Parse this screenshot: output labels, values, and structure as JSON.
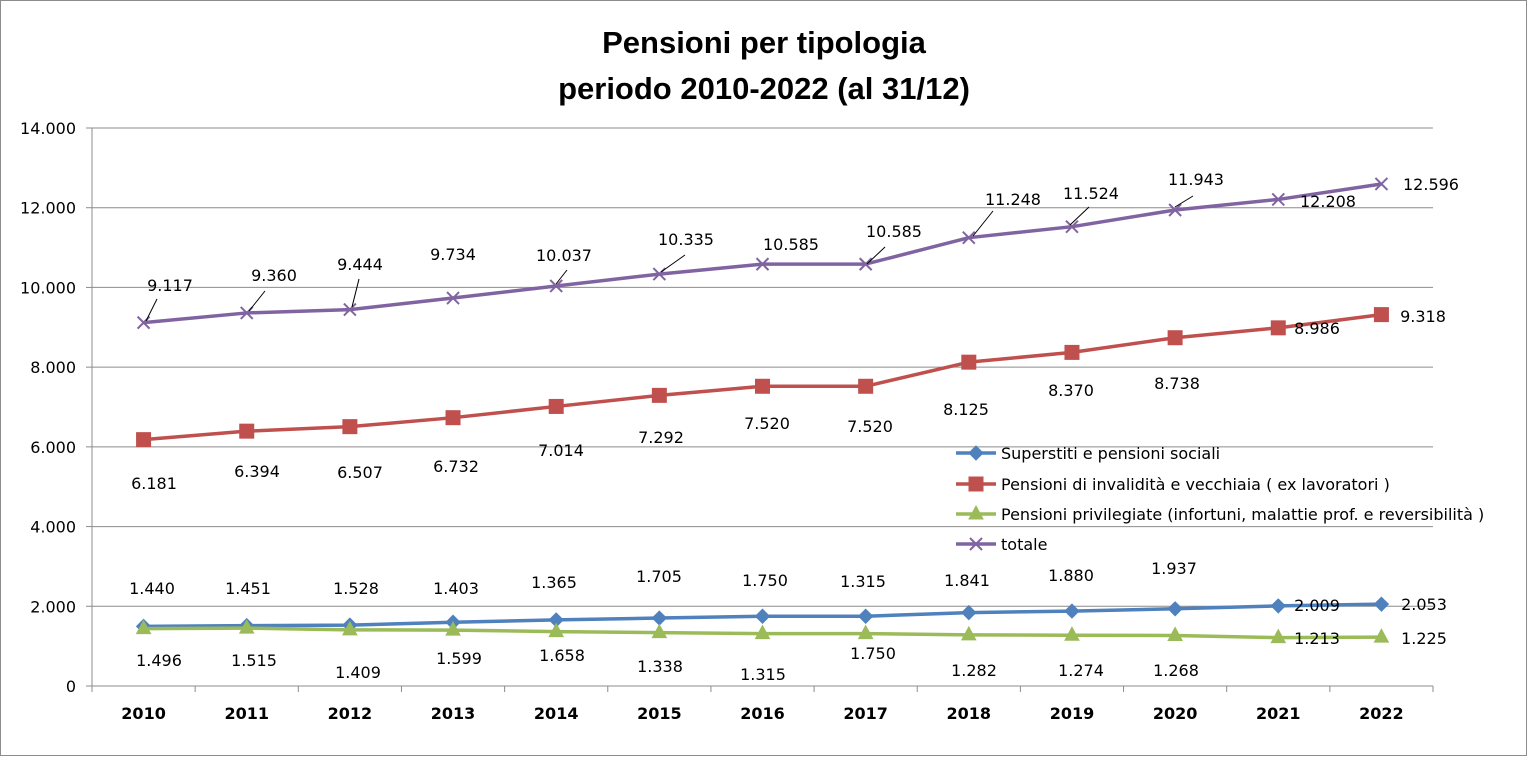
{
  "chart_data": {
    "type": "line",
    "title": [
      "Pensioni per tipologia",
      "periodo 2010-2022 (al 31/12)"
    ],
    "categories": [
      "2010",
      "2011",
      "2012",
      "2013",
      "2014",
      "2015",
      "2016",
      "2017",
      "2018",
      "2019",
      "2020",
      "2021",
      "2022"
    ],
    "ylim": [
      0,
      14000
    ],
    "yticks": [
      0,
      2000,
      4000,
      6000,
      8000,
      10000,
      12000,
      14000
    ],
    "ytick_labels": [
      "0",
      "2.000",
      "4.000",
      "6.000",
      "8.000",
      "10.000",
      "12.000",
      "14.000"
    ],
    "grid": true,
    "legend_position": "right",
    "series": [
      {
        "name": "Superstiti e pensioni sociali",
        "color": "#4f81bd",
        "marker": "diamond",
        "values": [
          1496,
          1515,
          1528,
          1599,
          1658,
          1705,
          1750,
          1750,
          1841,
          1880,
          1937,
          2009,
          2053
        ],
        "labels": [
          "1.496",
          "1.515",
          "1.528",
          "1.599",
          "1.658",
          "1.705",
          "1.750",
          "1.750",
          "1.841",
          "1.880",
          "1.937",
          "2.009",
          "2.053"
        ]
      },
      {
        "name": "Pensioni di invalidità e vecchiaia ( ex lavoratori )",
        "color": "#c0504d",
        "marker": "square",
        "values": [
          6181,
          6394,
          6507,
          6732,
          7014,
          7292,
          7520,
          7520,
          8125,
          8370,
          8738,
          8986,
          9318
        ],
        "labels": [
          "6.181",
          "6.394",
          "6.507",
          "6.732",
          "7.014",
          "7.292",
          "7.520",
          "7.520",
          "8.125",
          "8.370",
          "8.738",
          "8.986",
          "9.318"
        ]
      },
      {
        "name": "Pensioni privilegiate (infortuni, malattie prof. e reversibilità )",
        "color": "#9bbb59",
        "marker": "triangle",
        "values": [
          1440,
          1451,
          1409,
          1403,
          1365,
          1338,
          1315,
          1315,
          1282,
          1274,
          1268,
          1213,
          1225
        ],
        "labels": [
          "1.440",
          "1.451",
          "1.409",
          "1.403",
          "1.365",
          "1.338",
          "1.315",
          "1.315",
          "1.282",
          "1.274",
          "1.268",
          "1.213",
          "1.225"
        ]
      },
      {
        "name": "totale",
        "color": "#8064a2",
        "marker": "x",
        "values": [
          9117,
          9360,
          9444,
          9734,
          10037,
          10335,
          10585,
          10585,
          11248,
          11524,
          11943,
          12208,
          12596
        ],
        "labels": [
          "9.117",
          "9.360",
          "9.444",
          "9.734",
          "10.037",
          "10.335",
          "10.585",
          "10.585",
          "11.248",
          "11.524",
          "11.943",
          "12.208",
          "12.596"
        ]
      }
    ]
  }
}
